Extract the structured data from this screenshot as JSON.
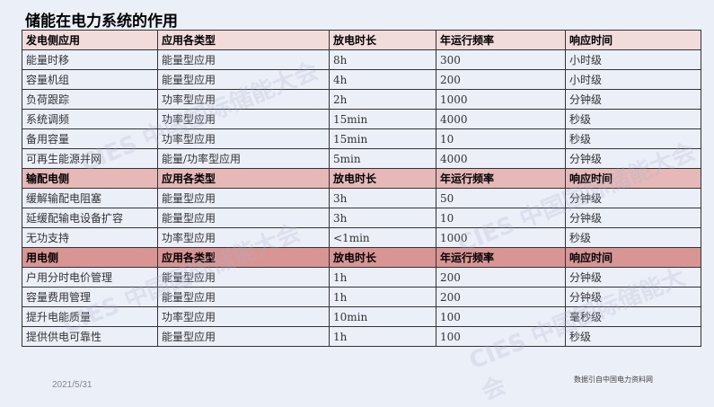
{
  "title": "储能在电力系统的作用",
  "sections": [
    {
      "header": [
        "发电侧应用",
        "应用各类型",
        "放电时长",
        "年运行频率",
        "响应时间"
      ],
      "rows": [
        [
          "能量时移",
          "能量型应用",
          "8h",
          "300",
          "小时级"
        ],
        [
          "容量机组",
          "能量型应用",
          "4h",
          "200",
          "小时级"
        ],
        [
          "负荷跟踪",
          "功率型应用",
          "2h",
          "1000",
          "分钟级"
        ],
        [
          "系统调频",
          "功率型应用",
          "15min",
          "4000",
          "秒级"
        ],
        [
          "备用容量",
          "功率型应用",
          "15min",
          "10",
          "秒级"
        ],
        [
          "可再生能源并网",
          "能量/功率型应用",
          "5min",
          "4000",
          "分钟级"
        ]
      ]
    },
    {
      "header": [
        "输配电侧",
        "应用各类型",
        "放电时长",
        "年运行频率",
        "响应时间"
      ],
      "rows": [
        [
          "缓解输配电阻塞",
          "能量型应用",
          "3h",
          "50",
          "分钟级"
        ],
        [
          "延缓配输电设备扩容",
          "能量型应用",
          "3h",
          "10",
          "分钟级"
        ],
        [
          "无功支持",
          "功率型应用",
          "<1min",
          "1000",
          "秒级"
        ]
      ]
    },
    {
      "header": [
        "用电侧",
        "应用各类型",
        "放电时长",
        "年运行频率",
        "响应时间"
      ],
      "rows": [
        [
          "户用分时电价管理",
          "能量型应用",
          "1h",
          "200",
          "分钟级"
        ],
        [
          "容量费用管理",
          "能量型应用",
          "1h",
          "200",
          "分钟级"
        ],
        [
          "提升电能质量",
          "功率型应用",
          "10min",
          "100",
          "毫秒级"
        ],
        [
          "提供供电可靠性",
          "能量型应用",
          "1h",
          "100",
          "秒级"
        ]
      ]
    }
  ],
  "date": "2021/5/31",
  "source": "数据引自中国电力资料网",
  "watermark": "CIES 中国国际储能大会"
}
